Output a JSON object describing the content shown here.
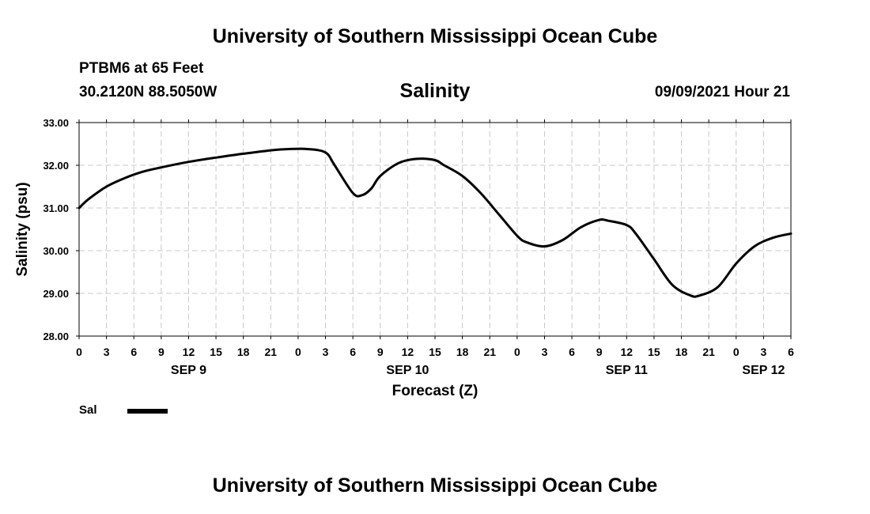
{
  "header": {
    "title": "University of Southern Mississippi Ocean Cube",
    "station": "PTBM6 at 65 Feet",
    "coords": "30.2120N  88.5050W",
    "variable": "Salinity",
    "timestamp": "09/09/2021 Hour 21"
  },
  "footer": {
    "title": "University of Southern Mississippi Ocean Cube"
  },
  "legend": {
    "label": "Sal",
    "color": "#000000"
  },
  "chart_data": {
    "type": "line",
    "xlabel": "Forecast (Z)",
    "ylabel": "Salinity (psu)",
    "ylim": [
      28,
      33
    ],
    "yticks": [
      "28.00",
      "29.00",
      "30.00",
      "31.00",
      "32.00",
      "33.00"
    ],
    "xlim_hours": [
      0,
      78
    ],
    "xtick_labels": [
      "0",
      "3",
      "6",
      "9",
      "12",
      "15",
      "18",
      "21",
      "0",
      "3",
      "6",
      "9",
      "12",
      "15",
      "18",
      "21",
      "0",
      "3",
      "6",
      "9",
      "12",
      "15",
      "18",
      "21",
      "0",
      "3",
      "6"
    ],
    "day_labels": [
      {
        "label": "SEP 9",
        "hour": 12
      },
      {
        "label": "SEP 10",
        "hour": 36
      },
      {
        "label": "SEP 11",
        "hour": 60
      },
      {
        "label": "SEP 12",
        "hour": 75
      }
    ],
    "grid": true,
    "series": [
      {
        "name": "Sal",
        "x_hours": [
          0,
          1,
          3,
          5,
          7,
          9,
          12,
          15,
          18,
          21,
          23,
          25,
          27,
          28,
          30,
          31,
          32,
          33,
          35,
          37,
          39,
          40,
          42,
          44,
          46,
          48,
          49,
          51,
          53,
          55,
          57,
          58,
          60,
          61,
          63,
          65,
          67,
          68,
          70,
          72,
          74,
          76,
          78
        ],
        "values": [
          31.0,
          31.2,
          31.5,
          31.7,
          31.85,
          31.95,
          32.08,
          32.18,
          32.27,
          32.35,
          32.38,
          32.38,
          32.3,
          32.0,
          31.35,
          31.3,
          31.45,
          31.75,
          32.05,
          32.15,
          32.12,
          32.0,
          31.75,
          31.35,
          30.85,
          30.35,
          30.2,
          30.1,
          30.25,
          30.55,
          30.72,
          30.7,
          30.6,
          30.4,
          29.8,
          29.2,
          28.95,
          28.95,
          29.15,
          29.7,
          30.1,
          30.3,
          30.4
        ]
      }
    ]
  }
}
